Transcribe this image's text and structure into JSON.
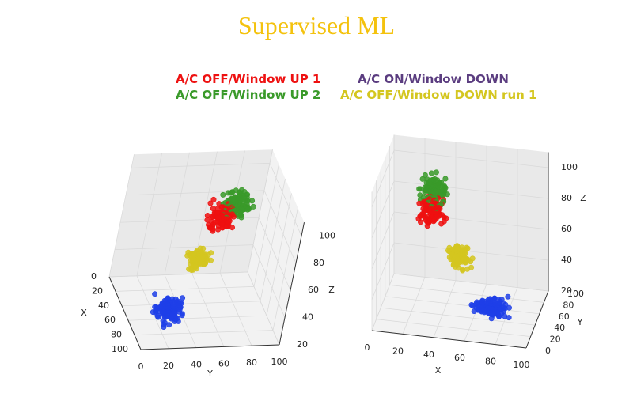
{
  "title": "Supervised ML",
  "colors": {
    "title": "#f4c20d",
    "red": "#ee1111",
    "green": "#3a9a2a",
    "purple": "#5b3d80",
    "yellow": "#d4c620",
    "blue": "#1f3fe8"
  },
  "chart_data": {
    "type": "scatter",
    "dimensions": "3d",
    "title": "Supervised ML",
    "legend": [
      {
        "label": "A/C OFF/Window UP 1",
        "color": "#ee1111"
      },
      {
        "label": "A/C OFF/Window UP 2",
        "color": "#3a9a2a"
      },
      {
        "label": "A/C ON/Window DOWN",
        "color": "#5b3d80"
      },
      {
        "label": "A/C OFF/Window DOWN run 1",
        "color": "#d4c620"
      }
    ],
    "legend_placement": "top-center",
    "grid": true,
    "panels": [
      {
        "view": "elev-high-azim-left",
        "x_label": "X",
        "y_label": "Y",
        "z_label": "Z",
        "x_ticks": [
          "0",
          "20",
          "40",
          "60",
          "80",
          "100"
        ],
        "y_ticks": [
          "0",
          "20",
          "40",
          "60",
          "80",
          "100"
        ],
        "z_ticks": [
          "20",
          "40",
          "60",
          "80",
          "100"
        ],
        "xlim": [
          0,
          100
        ],
        "ylim": [
          0,
          100
        ],
        "zlim": [
          20,
          110
        ]
      },
      {
        "view": "elev-high-azim-right",
        "x_label": "X",
        "y_label": "Y",
        "z_label": "Z",
        "x_ticks": [
          "0",
          "20",
          "40",
          "60",
          "80",
          "100"
        ],
        "y_ticks": [
          "0",
          "20",
          "40",
          "60",
          "80",
          "100"
        ],
        "z_ticks": [
          "20",
          "40",
          "60",
          "80",
          "100"
        ],
        "xlim": [
          0,
          100
        ],
        "ylim": [
          0,
          100
        ],
        "zlim": [
          20,
          110
        ]
      }
    ],
    "clusters": [
      {
        "name": "blue",
        "color": "#1f3fe8",
        "count": 150,
        "x": [
          55,
          95
        ],
        "y": [
          5,
          40
        ],
        "z": [
          25,
          45
        ]
      },
      {
        "name": "yellow",
        "color": "#d4c620",
        "count": 90,
        "x": [
          35,
          65
        ],
        "y": [
          30,
          60
        ],
        "z": [
          45,
          70
        ]
      },
      {
        "name": "red",
        "color": "#ee1111",
        "count": 100,
        "x": [
          15,
          45
        ],
        "y": [
          45,
          80
        ],
        "z": [
          60,
          95
        ]
      },
      {
        "name": "green",
        "color": "#3a9a2a",
        "count": 110,
        "x": [
          15,
          45
        ],
        "y": [
          55,
          90
        ],
        "z": [
          70,
          105
        ]
      }
    ]
  }
}
